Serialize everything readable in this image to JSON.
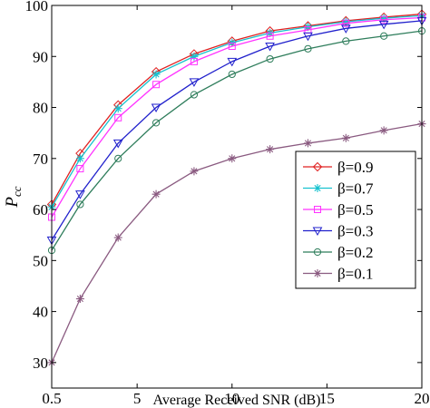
{
  "chart_data": {
    "type": "line",
    "xlabel": "Average Received SNR (dB)",
    "ylabel": "P",
    "ylabel_subscript": "cc",
    "xlim": [
      0.5,
      20
    ],
    "ylim": [
      25,
      100
    ],
    "xticks": [
      0.5,
      5,
      10,
      15,
      20
    ],
    "xtick_labels": [
      "0.5",
      "5",
      "10",
      "15",
      "20"
    ],
    "yticks": [
      30,
      40,
      50,
      60,
      70,
      80,
      90,
      100
    ],
    "ytick_labels": [
      "30",
      "40",
      "50",
      "60",
      "70",
      "80",
      "90",
      "100"
    ],
    "grid": false,
    "legend_position": "right",
    "x": [
      0.5,
      2,
      4,
      6,
      8,
      10,
      12,
      14,
      16,
      18,
      20
    ],
    "series": [
      {
        "name": "β=0.9",
        "color": "#e02020",
        "marker": "diamond",
        "values": [
          61,
          71,
          80.5,
          87,
          90.5,
          93,
          95,
          96,
          97,
          97.7,
          98.3
        ]
      },
      {
        "name": "β=0.7",
        "color": "#17c2cf",
        "marker": "star",
        "values": [
          60.5,
          70,
          79.8,
          86.5,
          90,
          92.7,
          94.6,
          95.8,
          96.8,
          97.5,
          98
        ]
      },
      {
        "name": "β=0.5",
        "color": "#ff33ff",
        "marker": "square",
        "values": [
          58.5,
          68,
          78,
          84.5,
          89,
          92,
          94,
          95.2,
          96.5,
          97.2,
          97.6
        ]
      },
      {
        "name": "β=0.3",
        "color": "#2020cc",
        "marker": "triangle-down",
        "values": [
          54,
          63,
          73,
          80,
          85,
          89,
          92,
          94,
          95.5,
          96.3,
          97
        ]
      },
      {
        "name": "β=0.2",
        "color": "#2e7d5b",
        "marker": "circle",
        "values": [
          52,
          61,
          70,
          77,
          82.5,
          86.5,
          89.5,
          91.5,
          93,
          94,
          95
        ]
      },
      {
        "name": "β=0.1",
        "color": "#8a5a80",
        "marker": "star",
        "values": [
          30,
          42.5,
          54.5,
          63,
          67.5,
          70,
          71.8,
          73,
          74,
          75.5,
          76.8
        ]
      }
    ]
  }
}
